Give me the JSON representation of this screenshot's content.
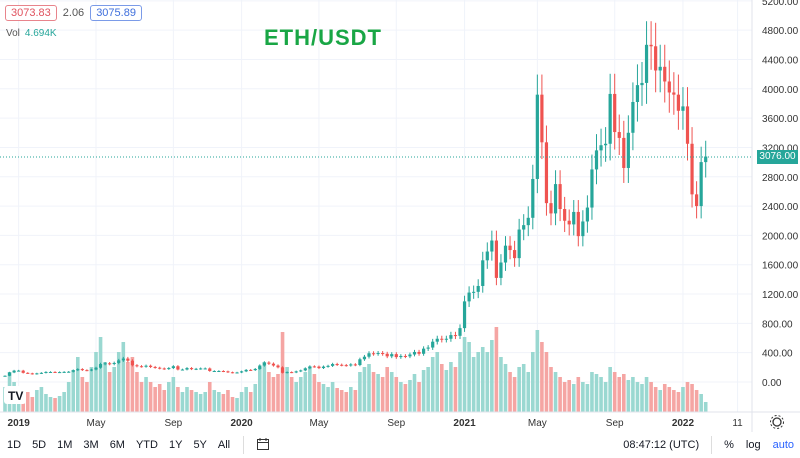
{
  "legend": {
    "open": "3073.83",
    "change": "2.06",
    "close": "3075.89",
    "vol_label": "Vol",
    "vol_value": "4.694K"
  },
  "bottom": {
    "ranges": [
      "1D",
      "5D",
      "1M",
      "3M",
      "6M",
      "YTD",
      "1Y",
      "5Y",
      "All"
    ],
    "time": "08:47:12 (UTC)",
    "percent": "%",
    "log": "log",
    "auto": "auto"
  },
  "current_price_label": "3076.00",
  "colors": {
    "up": "#26a69a",
    "down": "#ef5350",
    "title": "#19a645"
  },
  "chart_data": {
    "type": "candlestick",
    "title": "ETH/USDT",
    "interval": "weekly",
    "ylim": [
      0,
      5200
    ],
    "yticks": [
      0,
      400,
      800,
      1200,
      1600,
      2000,
      2400,
      2800,
      3200,
      3600,
      4000,
      4400,
      4800,
      5200
    ],
    "xticks": [
      {
        "label": "2019",
        "index": 3
      },
      {
        "label": "May",
        "index": 20
      },
      {
        "label": "Sep",
        "index": 37
      },
      {
        "label": "2020",
        "index": 52
      },
      {
        "label": "May",
        "index": 69
      },
      {
        "label": "Sep",
        "index": 86
      },
      {
        "label": "2021",
        "index": 101
      },
      {
        "label": "May",
        "index": 117
      },
      {
        "label": "Sep",
        "index": 134
      },
      {
        "label": "2022",
        "index": 149
      },
      {
        "label": "11",
        "index": 161
      }
    ],
    "current_price": 3076,
    "first_open": 85,
    "closes": [
      85,
      130,
      155,
      155,
      125,
      118,
      108,
      118,
      125,
      137,
      137,
      133,
      135,
      138,
      140,
      160,
      176,
      162,
      158,
      170,
      195,
      245,
      255,
      245,
      260,
      295,
      320,
      290,
      228,
      215,
      210,
      222,
      205,
      195,
      185,
      178,
      190,
      215,
      170,
      170,
      190,
      175,
      180,
      185,
      185,
      150,
      150,
      150,
      145,
      133,
      127,
      130,
      145,
      165,
      162,
      178,
      225,
      265,
      250,
      225,
      200,
      125,
      135,
      130,
      145,
      158,
      187,
      213,
      210,
      190,
      210,
      220,
      245,
      235,
      230,
      225,
      240,
      232,
      310,
      345,
      392,
      385,
      395,
      385,
      350,
      380,
      340,
      355,
      350,
      375,
      410,
      385,
      455,
      470,
      550,
      590,
      580,
      590,
      640,
      630,
      735,
      1100,
      1220,
      1230,
      1310,
      1660,
      1780,
      1930,
      1420,
      1630,
      1860,
      1800,
      1690,
      2080,
      2140,
      2240,
      2770,
      3920,
      3270,
      2440,
      2300,
      2700,
      2360,
      2200,
      2150,
      2320,
      1990,
      2190,
      2380,
      2900,
      3160,
      3230,
      3250,
      3930,
      3410,
      3330,
      2920,
      3400,
      3820,
      4050,
      4080,
      4600,
      4580,
      4250,
      4300,
      4100,
      3950,
      3920,
      3700,
      3760,
      3250,
      2560,
      2400,
      3000,
      3076
    ],
    "volumes": [
      25,
      40,
      30,
      22,
      18,
      20,
      15,
      22,
      25,
      18,
      15,
      14,
      16,
      20,
      30,
      42,
      55,
      35,
      30,
      45,
      60,
      75,
      50,
      40,
      45,
      60,
      70,
      50,
      55,
      40,
      30,
      35,
      30,
      25,
      28,
      22,
      30,
      35,
      25,
      20,
      25,
      22,
      20,
      18,
      20,
      30,
      22,
      20,
      18,
      22,
      15,
      14,
      20,
      25,
      20,
      28,
      45,
      50,
      40,
      35,
      38,
      80,
      45,
      35,
      30,
      35,
      40,
      45,
      38,
      30,
      28,
      25,
      30,
      24,
      22,
      20,
      25,
      22,
      40,
      45,
      48,
      40,
      38,
      35,
      45,
      40,
      35,
      30,
      28,
      32,
      38,
      30,
      42,
      45,
      55,
      60,
      48,
      42,
      50,
      45,
      60,
      75,
      70,
      55,
      60,
      65,
      60,
      72,
      85,
      55,
      48,
      40,
      35,
      45,
      48,
      40,
      60,
      82,
      70,
      60,
      45,
      40,
      35,
      30,
      32,
      28,
      35,
      30,
      28,
      40,
      38,
      35,
      30,
      45,
      40,
      35,
      38,
      32,
      35,
      30,
      28,
      35,
      30,
      25,
      22,
      28,
      25,
      22,
      20,
      25,
      30,
      28,
      22,
      18,
      10
    ]
  }
}
